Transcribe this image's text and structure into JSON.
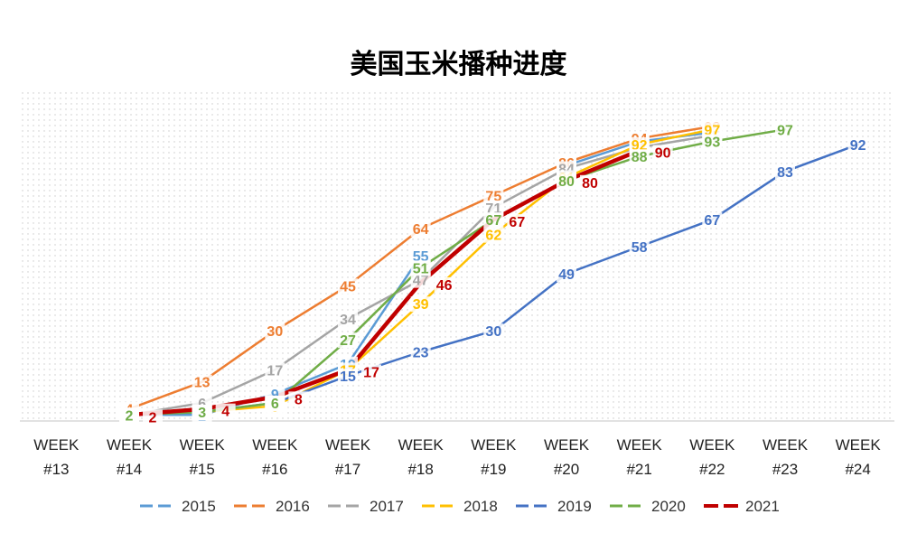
{
  "chart_data": {
    "type": "line",
    "title": "美国玉米播种进度",
    "categories": [
      [
        "WEEK",
        "#13"
      ],
      [
        "WEEK",
        "#14"
      ],
      [
        "WEEK",
        "#15"
      ],
      [
        "WEEK",
        "#16"
      ],
      [
        "WEEK",
        "#17"
      ],
      [
        "WEEK",
        "#18"
      ],
      [
        "WEEK",
        "#19"
      ],
      [
        "WEEK",
        "#20"
      ],
      [
        "WEEK",
        "#21"
      ],
      [
        "WEEK",
        "#22"
      ],
      [
        "WEEK",
        "#23"
      ],
      [
        "WEEK",
        "#24"
      ]
    ],
    "ylim": [
      0,
      110
    ],
    "grid": "dotted",
    "legend_position": "bottom",
    "series": [
      {
        "name": "2015",
        "color": "#5B9BD5",
        "width": 2.5,
        "label_color": "#5B9BD5",
        "values": [
          null,
          2,
          2,
          9,
          19,
          55,
          null,
          85,
          93,
          96,
          null,
          null
        ]
      },
      {
        "name": "2016",
        "color": "#ED7D31",
        "width": 2.5,
        "label_color": "#ED7D31",
        "values": [
          null,
          4,
          13,
          30,
          45,
          64,
          75,
          86,
          94,
          98,
          null,
          null
        ]
      },
      {
        "name": "2017",
        "color": "#A5A5A5",
        "width": 2.5,
        "label_color": "#A5A5A5",
        "values": [
          null,
          2,
          6,
          17,
          34,
          47,
          71,
          84,
          91,
          95,
          null,
          null
        ]
      },
      {
        "name": "2018",
        "color": "#FFC000",
        "width": 2.5,
        "label_color": "#FFC000",
        "values": [
          null,
          2,
          3,
          5,
          17,
          39,
          62,
          81,
          92,
          97,
          null,
          null
        ]
      },
      {
        "name": "2019",
        "color": "#4472C4",
        "width": 2.5,
        "label_color": "#4472C4",
        "values": [
          null,
          2,
          3,
          6,
          15,
          23,
          30,
          49,
          58,
          67,
          83,
          92
        ]
      },
      {
        "name": "2020",
        "color": "#70AD47",
        "width": 2.5,
        "label_color": "#70AD47",
        "values": [
          null,
          2,
          3,
          6,
          27,
          51,
          67,
          80,
          88,
          93,
          97,
          null
        ]
      },
      {
        "name": "2021",
        "color": "#C00000",
        "width": 4.5,
        "label_color": "#C00000",
        "values": [
          null,
          2,
          4,
          8,
          17,
          46,
          67,
          80,
          90,
          null,
          null,
          null
        ]
      }
    ]
  }
}
